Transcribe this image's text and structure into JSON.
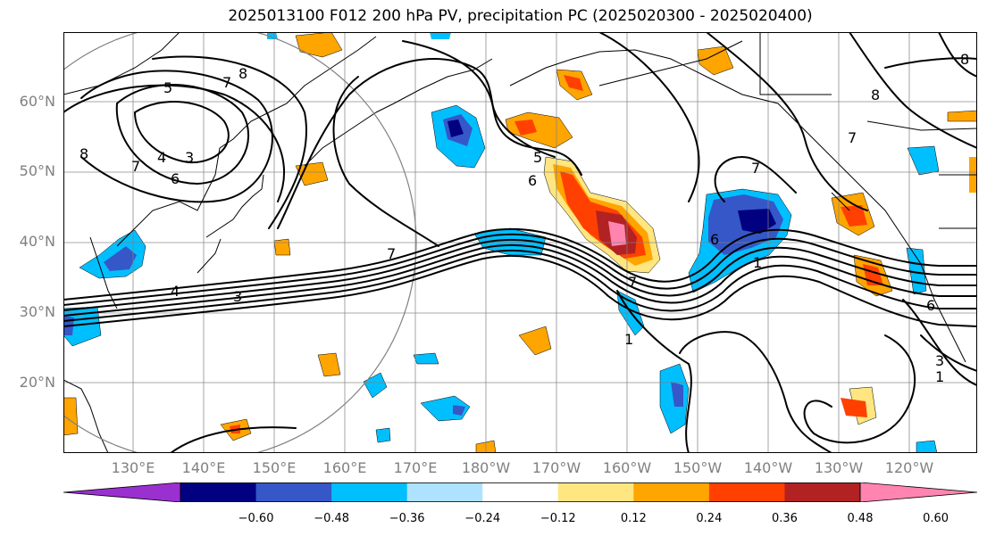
{
  "title": "2025013100 F012 200 hPa PV, precipitation PC (2025020300 - 2025020400)",
  "lat_labels": [
    "60°N",
    "50°N",
    "40°N",
    "30°N",
    "20°N"
  ],
  "lon_labels": [
    "130°E",
    "140°E",
    "150°E",
    "160°E",
    "170°E",
    "180°W",
    "170°W",
    "160°W",
    "150°W",
    "140°W",
    "130°W",
    "120°W"
  ],
  "contour_labels": [
    "5",
    "7",
    "8",
    "4",
    "3",
    "6",
    "7",
    "8",
    "5",
    "6",
    "7",
    "8",
    "7",
    "6",
    "1",
    "7",
    "1",
    "3",
    "1",
    "3",
    "4",
    "6",
    "7",
    "8"
  ],
  "colorbar": {
    "ticks": [
      "−0.60",
      "−0.48",
      "−0.36",
      "−0.24",
      "−0.12",
      "0.12",
      "0.24",
      "0.36",
      "0.48",
      "0.60"
    ],
    "colors": [
      "#9b30d0",
      "#000080",
      "#3557c8",
      "#00bfff",
      "#aee2ff",
      "#ffffff",
      "#ffe680",
      "#ffa500",
      "#ff4000",
      "#b22222",
      "#ff85b0"
    ]
  },
  "map_colors": {
    "land": "#000000",
    "grid": "#808080",
    "pv": "#000000",
    "circle": "#808080"
  }
}
